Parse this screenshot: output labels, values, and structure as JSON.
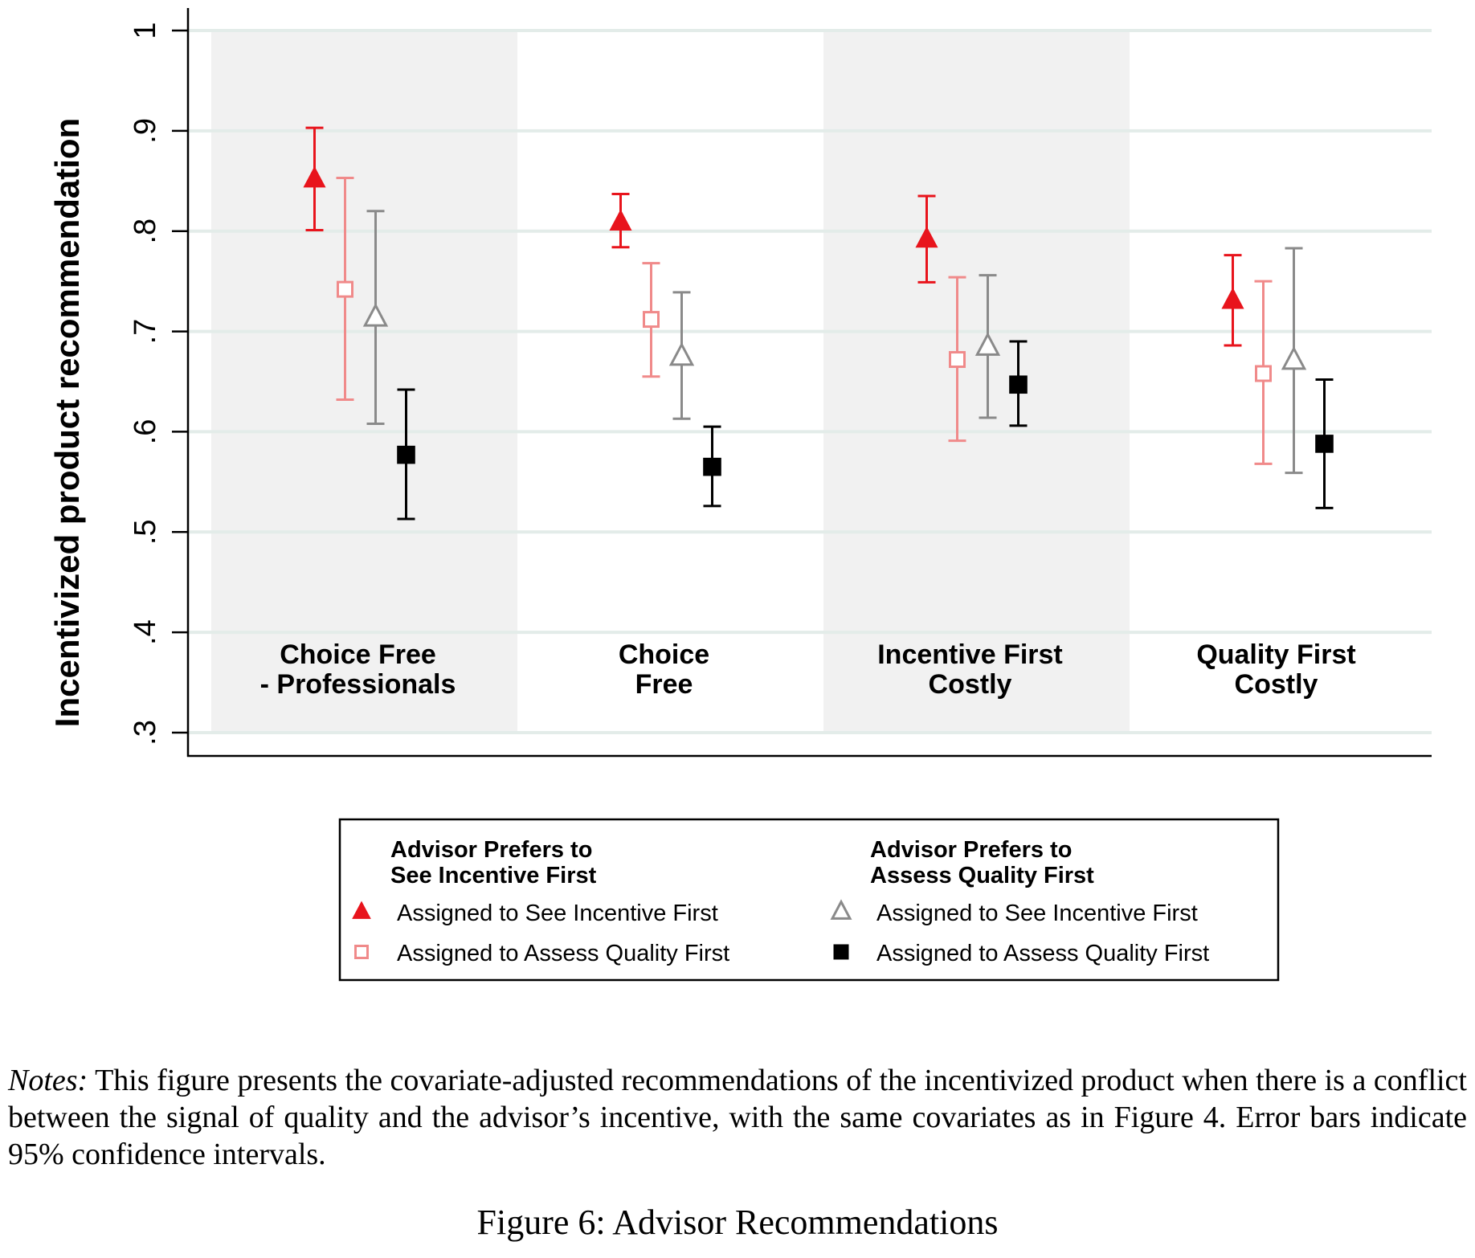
{
  "chart_data": {
    "type": "scatter",
    "ylabel": "Incentivized product recommendation",
    "ylim": [
      0.3,
      1.0
    ],
    "yticks": [
      {
        "value": 0.3,
        "label": ".3"
      },
      {
        "value": 0.4,
        "label": ".4"
      },
      {
        "value": 0.5,
        "label": ".5"
      },
      {
        "value": 0.6,
        "label": ".6"
      },
      {
        "value": 0.7,
        "label": ".7"
      },
      {
        "value": 0.8,
        "label": ".8"
      },
      {
        "value": 0.9,
        "label": ".9"
      },
      {
        "value": 1.0,
        "label": "1"
      }
    ],
    "grid": true,
    "categories": [
      {
        "label_lines": [
          "Choice Free",
          "- Professionals"
        ],
        "shaded": true
      },
      {
        "label_lines": [
          "Choice",
          "Free"
        ],
        "shaded": false
      },
      {
        "label_lines": [
          "Incentive First",
          "Costly"
        ],
        "shaded": true
      },
      {
        "label_lines": [
          "Quality First",
          "Costly"
        ],
        "shaded": false
      }
    ],
    "series": [
      {
        "name": "Assigned to See Incentive First",
        "group": "Advisor Prefers to See Incentive First",
        "marker": "triangle",
        "filled": true,
        "color": "#e8141c",
        "values": [
          0.852,
          0.809,
          0.792,
          0.731
        ],
        "ci_low": [
          0.801,
          0.784,
          0.749,
          0.686
        ],
        "ci_high": [
          0.903,
          0.837,
          0.835,
          0.776
        ]
      },
      {
        "name": "Assigned to Assess Quality First",
        "group": "Advisor Prefers to See Incentive First",
        "marker": "square",
        "filled": false,
        "color": "#f08a8a",
        "values": [
          0.742,
          0.712,
          0.672,
          0.658
        ],
        "ci_low": [
          0.632,
          0.655,
          0.591,
          0.568
        ],
        "ci_high": [
          0.853,
          0.768,
          0.754,
          0.75
        ]
      },
      {
        "name": "Assigned to See Incentive First",
        "group": "Advisor Prefers to Assess Quality First",
        "marker": "triangle",
        "filled": false,
        "color": "#8a8a8a",
        "values": [
          0.714,
          0.675,
          0.685,
          0.671
        ],
        "ci_low": [
          0.608,
          0.613,
          0.614,
          0.559
        ],
        "ci_high": [
          0.82,
          0.739,
          0.756,
          0.783
        ]
      },
      {
        "name": "Assigned to Assess Quality First",
        "group": "Advisor Prefers to Assess Quality First",
        "marker": "square",
        "filled": true,
        "color": "#000000",
        "values": [
          0.577,
          0.565,
          0.647,
          0.588
        ],
        "ci_low": [
          0.513,
          0.526,
          0.606,
          0.524
        ],
        "ci_high": [
          0.642,
          0.605,
          0.69,
          0.652
        ]
      }
    ],
    "legend": {
      "placement": "bottom",
      "groups": [
        {
          "title_lines": [
            "Advisor Prefers to",
            "See Incentive First"
          ],
          "series_index": [
            0,
            1
          ]
        },
        {
          "title_lines": [
            "Advisor Prefers to",
            "Assess Quality First"
          ],
          "series_index": [
            2,
            3
          ]
        }
      ]
    }
  },
  "notes": {
    "label": "Notes:",
    "text": "This figure presents the covariate-adjusted recommendations of the incentivized product when there is a conflict between the signal of quality and the advisor’s incentive, with the same covariates as in Figure 4. Error bars indicate 95% confidence intervals."
  },
  "caption": "Figure 6: Advisor Recommendations"
}
